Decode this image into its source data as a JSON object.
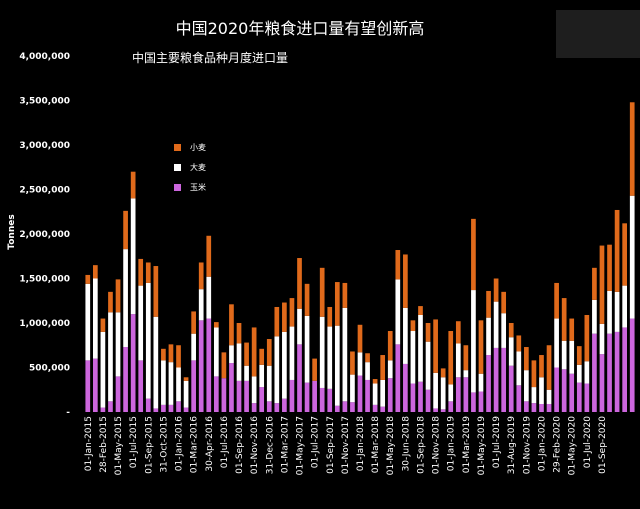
{
  "chart_data": {
    "type": "bar",
    "stacked": true,
    "title": "中国2020年粮食进口量有望创新高",
    "subtitle": "中国主要粮食品种月度进口量",
    "xlabel": "",
    "ylabel": "Tonnes",
    "ylim": [
      0,
      4000000
    ],
    "y_ticks": [
      0,
      500000,
      1000000,
      1500000,
      2000000,
      2500000,
      3000000,
      3500000,
      4000000
    ],
    "y_tick_labels": [
      "-",
      "500,000",
      "1,000,000",
      "1,500,000",
      "2,000,000",
      "2,500,000",
      "3,000,000",
      "3,500,000",
      "4,000,000"
    ],
    "grid": false,
    "legend_position": "top-left",
    "x_tick_labels": [
      {
        "i": 0,
        "label": "01-Jan-2015"
      },
      {
        "i": 2,
        "label": "28-Feb-2015"
      },
      {
        "i": 4,
        "label": "01-May-2015"
      },
      {
        "i": 6,
        "label": "01-Jul-2015"
      },
      {
        "i": 8,
        "label": "01-Sep-2015"
      },
      {
        "i": 10,
        "label": "31-Oct-2015"
      },
      {
        "i": 12,
        "label": "01-Jan-2016"
      },
      {
        "i": 14,
        "label": "01-Mar-2016"
      },
      {
        "i": 16,
        "label": "30-Apr-2016"
      },
      {
        "i": 18,
        "label": "01-Jul-2016"
      },
      {
        "i": 20,
        "label": "01-Sep-2016"
      },
      {
        "i": 22,
        "label": "01-Nov-2016"
      },
      {
        "i": 24,
        "label": "31-Dec-2016"
      },
      {
        "i": 26,
        "label": "01-Mar-2017"
      },
      {
        "i": 28,
        "label": "01-May-2017"
      },
      {
        "i": 30,
        "label": "01-Jul-2017"
      },
      {
        "i": 32,
        "label": "01-Sep-2017"
      },
      {
        "i": 34,
        "label": "01-Nov-2017"
      },
      {
        "i": 36,
        "label": "01-Jan-2018"
      },
      {
        "i": 38,
        "label": "01-Mar-2018"
      },
      {
        "i": 40,
        "label": "01-May-2018"
      },
      {
        "i": 42,
        "label": "30-Jun-2018"
      },
      {
        "i": 44,
        "label": "01-Sep-2018"
      },
      {
        "i": 46,
        "label": "01-Nov-2018"
      },
      {
        "i": 48,
        "label": "01-Jan-2019"
      },
      {
        "i": 50,
        "label": "01-Mar-2019"
      },
      {
        "i": 52,
        "label": "01-May-2019"
      },
      {
        "i": 54,
        "label": "01-Jul-2019"
      },
      {
        "i": 56,
        "label": "31-Aug-2019"
      },
      {
        "i": 58,
        "label": "01-Nov-2019"
      },
      {
        "i": 60,
        "label": "01-Jan-2020"
      },
      {
        "i": 62,
        "label": "29-Feb-2020"
      },
      {
        "i": 64,
        "label": "01-May-2020"
      },
      {
        "i": 66,
        "label": "01-Jul-2020"
      },
      {
        "i": 68,
        "label": "01-Sep-2020"
      }
    ],
    "series": [
      {
        "name": "玉米",
        "color": "#cc66dd",
        "values": [
          580000,
          600000,
          50000,
          120000,
          400000,
          730000,
          1100000,
          580000,
          150000,
          40000,
          80000,
          80000,
          120000,
          50000,
          580000,
          1030000,
          1050000,
          400000,
          380000,
          550000,
          350000,
          350000,
          100000,
          280000,
          120000,
          100000,
          150000,
          360000,
          760000,
          330000,
          350000,
          270000,
          260000,
          70000,
          120000,
          110000,
          410000,
          360000,
          80000,
          60000,
          380000,
          760000,
          540000,
          320000,
          340000,
          250000,
          40000,
          30000,
          120000,
          390000,
          390000,
          220000,
          230000,
          640000,
          720000,
          720000,
          520000,
          300000,
          120000,
          100000,
          90000,
          90000,
          500000,
          480000,
          430000,
          330000,
          320000,
          880000,
          650000,
          880000,
          900000,
          950000,
          1050000
        ]
      },
      {
        "name": "大麦",
        "color": "#ffffff",
        "values": [
          860000,
          900000,
          850000,
          1000000,
          720000,
          1100000,
          1300000,
          840000,
          1300000,
          1030000,
          500000,
          480000,
          380000,
          300000,
          300000,
          350000,
          470000,
          550000,
          0,
          200000,
          420000,
          170000,
          300000,
          250000,
          400000,
          750000,
          750000,
          600000,
          400000,
          750000,
          0,
          800000,
          700000,
          900000,
          1050000,
          310000,
          260000,
          200000,
          240000,
          300000,
          200000,
          730000,
          630000,
          590000,
          750000,
          540000,
          400000,
          360000,
          190000,
          380000,
          80000,
          1150000,
          200000,
          420000,
          520000,
          390000,
          320000,
          380000,
          350000,
          180000,
          300000,
          160000,
          550000,
          320000,
          370000,
          200000,
          250000,
          380000,
          340000,
          480000,
          450000,
          470000,
          1380000
        ]
      },
      {
        "name": "小麦",
        "color": "#e06a1b",
        "values": [
          100000,
          150000,
          150000,
          230000,
          370000,
          430000,
          300000,
          300000,
          230000,
          570000,
          130000,
          200000,
          250000,
          40000,
          250000,
          300000,
          460000,
          60000,
          290000,
          460000,
          230000,
          260000,
          550000,
          180000,
          300000,
          330000,
          330000,
          320000,
          570000,
          360000,
          250000,
          550000,
          220000,
          490000,
          280000,
          260000,
          310000,
          100000,
          50000,
          280000,
          330000,
          330000,
          600000,
          120000,
          100000,
          210000,
          600000,
          100000,
          600000,
          250000,
          280000,
          800000,
          600000,
          300000,
          260000,
          240000,
          160000,
          180000,
          260000,
          300000,
          250000,
          500000,
          400000,
          480000,
          250000,
          210000,
          520000,
          360000,
          880000,
          520000,
          920000,
          700000,
          1050000
        ]
      }
    ]
  }
}
